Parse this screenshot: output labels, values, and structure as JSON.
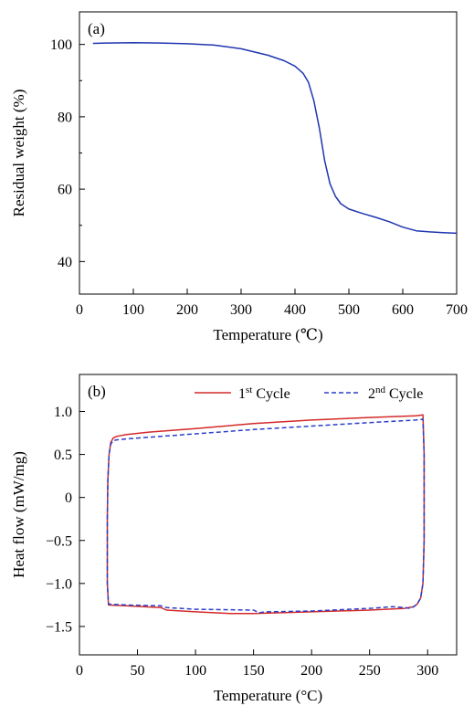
{
  "chart_data": [
    {
      "type": "line",
      "panel_label": "(a)",
      "xlabel": "Temperature (℃)",
      "ylabel": "Residual weight (%)",
      "xlim": [
        0,
        700
      ],
      "ylim": [
        31,
        109
      ],
      "xticks": [
        0,
        100,
        200,
        300,
        400,
        500,
        600,
        700
      ],
      "yticks": [
        40,
        60,
        80,
        100
      ],
      "grid": false,
      "series": [
        {
          "color": "#1f35b0",
          "style": "solid",
          "x": [
            25,
            50,
            100,
            150,
            200,
            250,
            300,
            350,
            380,
            400,
            415,
            425,
            435,
            445,
            455,
            465,
            475,
            485,
            500,
            525,
            550,
            575,
            600,
            625,
            650,
            675,
            700
          ],
          "y": [
            100.3,
            100.4,
            100.5,
            100.4,
            100.2,
            99.8,
            98.8,
            97.0,
            95.5,
            94.0,
            92.0,
            89.5,
            84.5,
            77.0,
            68.0,
            61.5,
            58.0,
            56.0,
            54.5,
            53.3,
            52.2,
            51.0,
            49.5,
            48.5,
            48.2,
            48.0,
            47.8
          ]
        }
      ]
    },
    {
      "type": "line",
      "panel_label": "(b)",
      "xlabel": "Temperature (°C)",
      "ylabel": "Heat flow (mW/mg)",
      "xlim": [
        0,
        325
      ],
      "ylim": [
        -1.83,
        1.43
      ],
      "xticks": [
        0,
        50,
        100,
        150,
        200,
        250,
        300
      ],
      "yticks": [
        -1.5,
        -1.0,
        -0.5,
        0,
        0.5,
        1.0
      ],
      "ytick_labels": [
        "−1.5",
        "−1.0",
        "−0.5",
        "0",
        "0.5",
        "1.0"
      ],
      "grid": false,
      "legend_position": "top-right",
      "series": [
        {
          "name_base": "1",
          "name_sup": "st",
          "name_rest": " Cycle",
          "color": "#d42a2a",
          "style": "solid",
          "x": [
            24,
            24.5,
            25.5,
            27,
            29,
            32,
            40,
            60,
            100,
            150,
            200,
            250,
            290,
            296,
            297,
            297,
            296,
            294,
            291,
            288,
            280,
            250,
            200,
            150,
            130,
            100,
            75,
            70,
            40,
            25,
            24,
            24
          ],
          "y": [
            -0.25,
            0.2,
            0.5,
            0.64,
            0.69,
            0.71,
            0.73,
            0.76,
            0.8,
            0.86,
            0.9,
            0.93,
            0.95,
            0.96,
            0.5,
            -0.5,
            -1.0,
            -1.17,
            -1.24,
            -1.27,
            -1.29,
            -1.31,
            -1.33,
            -1.35,
            -1.35,
            -1.33,
            -1.31,
            -1.28,
            -1.26,
            -1.25,
            -1.0,
            -0.25
          ]
        },
        {
          "name_base": "2",
          "name_sup": "nd",
          "name_rest": " Cycle",
          "color": "#2a3fc8",
          "style": "dashed",
          "x": [
            24,
            24.5,
            25.5,
            27,
            29,
            32,
            40,
            60,
            100,
            150,
            200,
            250,
            290,
            296,
            297,
            297,
            296,
            294,
            291,
            288,
            285,
            280,
            270,
            260,
            250,
            200,
            160,
            155,
            150,
            100,
            75,
            70,
            40,
            25,
            24,
            24
          ],
          "y": [
            -0.25,
            0.2,
            0.5,
            0.62,
            0.66,
            0.67,
            0.68,
            0.7,
            0.74,
            0.79,
            0.83,
            0.87,
            0.9,
            0.91,
            0.5,
            -0.5,
            -1.0,
            -1.17,
            -1.24,
            -1.27,
            -1.29,
            -1.28,
            -1.27,
            -1.28,
            -1.29,
            -1.32,
            -1.33,
            -1.34,
            -1.31,
            -1.3,
            -1.28,
            -1.26,
            -1.25,
            -1.24,
            -1.0,
            -0.25
          ]
        }
      ]
    }
  ]
}
